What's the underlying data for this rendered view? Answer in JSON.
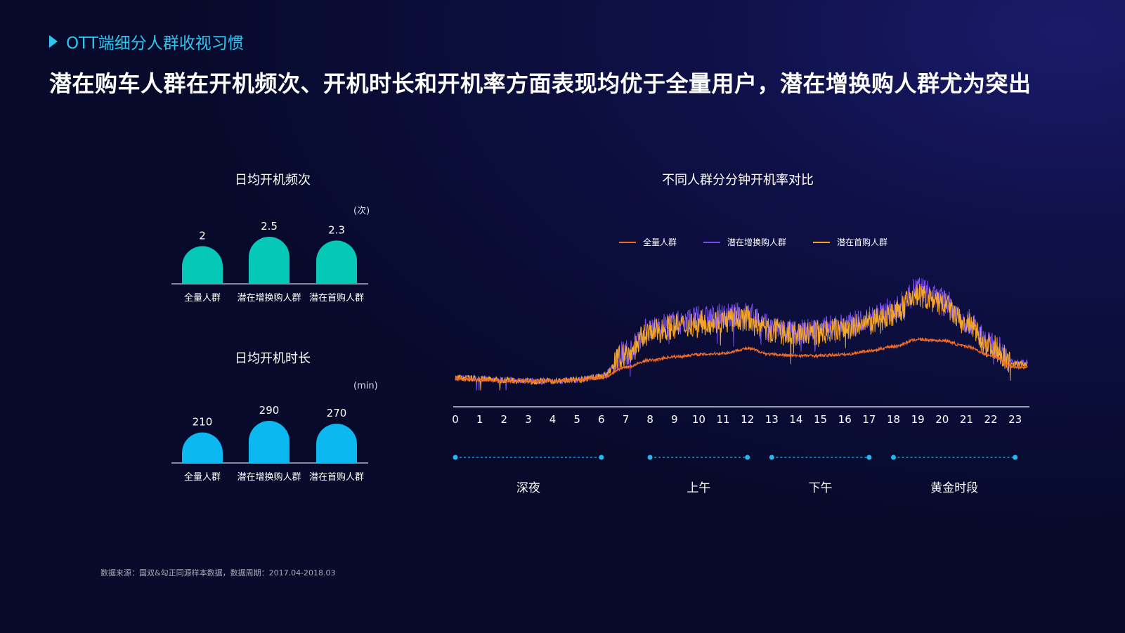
{
  "header": {
    "section_label": "OTT端细分人群收视习惯",
    "headline": "潜在购车人群在开机频次、开机时长和开机率方面表现均优于全量用户，潜在增换购人群尤为突出"
  },
  "footnote": "数据来源：国双&勾正同源样本数据，数据周期：2017.04-2018.03",
  "chart_data": [
    {
      "type": "bar",
      "title": "日均开机频次",
      "unit": "(次)",
      "categories": [
        "全量人群",
        "潜在增换购人群",
        "潜在首购人群"
      ],
      "values": [
        2,
        2.5,
        2.3
      ],
      "value_labels": [
        "2",
        "2.5",
        "2.3"
      ],
      "color": "#06c8b6"
    },
    {
      "type": "bar",
      "title": "日均开机时长",
      "unit": "(min)",
      "categories": [
        "全量人群",
        "潜在增换购人群",
        "潜在首购人群"
      ],
      "values": [
        210,
        290,
        270
      ],
      "value_labels": [
        "210",
        "290",
        "270"
      ],
      "color": "#0cb8f0"
    },
    {
      "type": "line",
      "title": "不同人群分分钟开机率对比",
      "x_ticks": [
        "0",
        "1",
        "2",
        "3",
        "4",
        "5",
        "6",
        "7",
        "8",
        "9",
        "10",
        "11",
        "12",
        "13",
        "14",
        "15",
        "16",
        "17",
        "18",
        "19",
        "20",
        "21",
        "22",
        "23"
      ],
      "series": [
        {
          "name": "全量人群",
          "color": "#f06a28",
          "hourly": [
            0.12,
            0.11,
            0.1,
            0.1,
            0.1,
            0.11,
            0.13,
            0.22,
            0.28,
            0.31,
            0.33,
            0.34,
            0.38,
            0.33,
            0.32,
            0.32,
            0.33,
            0.36,
            0.4,
            0.46,
            0.45,
            0.4,
            0.32,
            0.22
          ]
        },
        {
          "name": "潜在增换购人群",
          "color": "#7a4cf0",
          "hourly": [
            0.13,
            0.12,
            0.11,
            0.1,
            0.1,
            0.11,
            0.14,
            0.35,
            0.55,
            0.6,
            0.64,
            0.66,
            0.68,
            0.56,
            0.52,
            0.55,
            0.58,
            0.64,
            0.72,
            0.9,
            0.8,
            0.62,
            0.42,
            0.26
          ]
        },
        {
          "name": "潜在首购人群",
          "color": "#f5a623",
          "hourly": [
            0.13,
            0.12,
            0.11,
            0.1,
            0.1,
            0.11,
            0.14,
            0.33,
            0.52,
            0.57,
            0.6,
            0.62,
            0.64,
            0.53,
            0.5,
            0.52,
            0.55,
            0.6,
            0.68,
            0.84,
            0.76,
            0.59,
            0.4,
            0.25
          ]
        }
      ],
      "periods": [
        {
          "label": "深夜",
          "start": 0,
          "end": 6
        },
        {
          "label": "上午",
          "start": 8,
          "end": 12
        },
        {
          "label": "下午",
          "start": 13,
          "end": 17
        },
        {
          "label": "黄金时段",
          "start": 18,
          "end": 23
        }
      ],
      "axis_color": "#d0d0d8",
      "period_color": "#22b8f0"
    }
  ]
}
